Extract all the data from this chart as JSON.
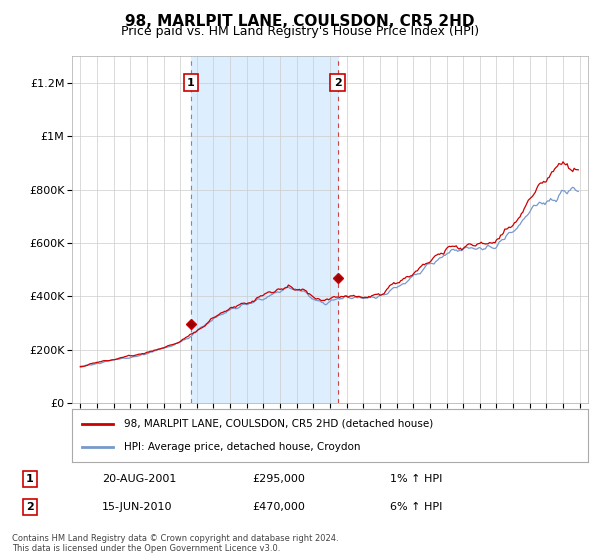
{
  "title": "98, MARLPIT LANE, COULSDON, CR5 2HD",
  "subtitle": "Price paid vs. HM Land Registry's House Price Index (HPI)",
  "title_fontsize": 11,
  "subtitle_fontsize": 9,
  "bg_color": "#ffffff",
  "plot_bg_color": "#ffffff",
  "grid_color": "#cccccc",
  "sale1_year": 2001.64,
  "sale1_price": 295000,
  "sale1_label": "1",
  "sale2_year": 2010.46,
  "sale2_price": 470000,
  "sale2_label": "2",
  "sale1_date": "20-AUG-2001",
  "sale1_amount": "£295,000",
  "sale1_hpi": "1% ↑ HPI",
  "sale2_date": "15-JUN-2010",
  "sale2_amount": "£470,000",
  "sale2_hpi": "6% ↑ HPI",
  "legend_line1": "98, MARLPIT LANE, COULSDON, CR5 2HD (detached house)",
  "legend_line2": "HPI: Average price, detached house, Croydon",
  "footer1": "Contains HM Land Registry data © Crown copyright and database right 2024.",
  "footer2": "This data is licensed under the Open Government Licence v3.0.",
  "shade_start": 2001.64,
  "shade_end": 2010.46,
  "shade_color": "#ddeeff",
  "line_red": "#cc0000",
  "line_blue": "#7799cc",
  "ylim": [
    0,
    1300000
  ],
  "xlim": [
    1994.5,
    2025.5
  ]
}
